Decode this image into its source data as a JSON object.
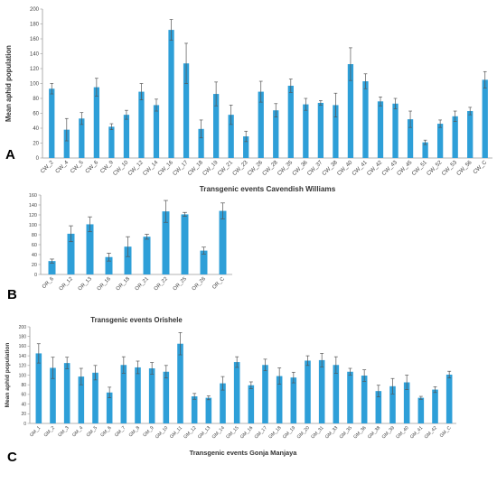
{
  "colors": {
    "bar": "#2E9FD8",
    "error_bar": "#555555",
    "axis": "#9a9a9a",
    "text": "#444444"
  },
  "chart_data": [
    {
      "type": "bar",
      "panel_label": "A",
      "title": "",
      "xlabel": "Transgenic events Cavendish Williams",
      "ylabel": "Mean aphid population",
      "ylim": [
        0,
        200
      ],
      "yticks": [
        0,
        20,
        40,
        60,
        80,
        100,
        120,
        140,
        160,
        180,
        200
      ],
      "grid": false,
      "categories": [
        "CW_2",
        "CW_4",
        "CW_5",
        "CW_6",
        "CW_9",
        "CW_10",
        "CW_12",
        "CW_14",
        "CW_16",
        "CW_17",
        "CW_18",
        "CW_19",
        "CW_21",
        "CW_23",
        "CW_26",
        "CW_28",
        "CW_35",
        "CW_36",
        "CW_37",
        "CW_38",
        "CW_40",
        "CW_41",
        "CW_42",
        "CW_43",
        "CW_45",
        "CW_51",
        "CW_52",
        "CW_53",
        "CW_56",
        "CW_C"
      ],
      "values": [
        93,
        38,
        53,
        95,
        42,
        58,
        89,
        71,
        172,
        127,
        39,
        86,
        58,
        29,
        89,
        64,
        97,
        72,
        74,
        71,
        126,
        103,
        76,
        73,
        52,
        21,
        46,
        56,
        63,
        105
      ],
      "errors": [
        7,
        15,
        8,
        12,
        4,
        6,
        11,
        8,
        14,
        27,
        12,
        16,
        13,
        7,
        14,
        9,
        9,
        8,
        3,
        16,
        22,
        10,
        6,
        7,
        11,
        3,
        5,
        7,
        5,
        11
      ]
    },
    {
      "type": "bar",
      "panel_label": "B",
      "title": "",
      "xlabel": "Transgenic events Orishele",
      "ylabel": "",
      "ylim": [
        0,
        160
      ],
      "yticks": [
        0,
        20,
        40,
        60,
        80,
        100,
        120,
        140,
        160
      ],
      "grid": false,
      "categories": [
        "OR_6",
        "OR_12",
        "OR_13",
        "OR_16",
        "OR_18",
        "OR_21",
        "OR_22",
        "OR_25",
        "OR_26",
        "OR_C"
      ],
      "values": [
        27,
        82,
        101,
        35,
        56,
        76,
        127,
        121,
        48,
        128
      ],
      "errors": [
        4,
        16,
        15,
        8,
        20,
        5,
        22,
        4,
        7,
        16
      ]
    },
    {
      "type": "bar",
      "panel_label": "C",
      "title": "",
      "xlabel": "Transgenic events Gonja Manjaya",
      "ylabel": "Mean aphid population",
      "ylim": [
        0,
        200
      ],
      "yticks": [
        0,
        20,
        40,
        60,
        80,
        100,
        120,
        140,
        160,
        180,
        200
      ],
      "grid": false,
      "categories": [
        "GM_1",
        "GM_2",
        "GM_3",
        "GM_4",
        "GM_5",
        "GM_6",
        "GM_7",
        "GM_8",
        "GM_9",
        "GM_10",
        "GM_11",
        "GM_12",
        "GM_13",
        "GM_14",
        "GM_15",
        "GM_16",
        "GM_17",
        "GM_18",
        "GM_19",
        "GM_20",
        "GM_31",
        "GM_33",
        "GM_35",
        "GM_36",
        "GM_38",
        "GM_39",
        "GM_40",
        "GM_41",
        "GM_42",
        "GM_C"
      ],
      "values": [
        145,
        115,
        125,
        97,
        105,
        64,
        121,
        116,
        114,
        107,
        165,
        56,
        53,
        83,
        127,
        79,
        121,
        98,
        95,
        130,
        131,
        121,
        107,
        99,
        67,
        77,
        85,
        53,
        70,
        101
      ],
      "errors": [
        20,
        22,
        12,
        17,
        15,
        11,
        17,
        13,
        12,
        13,
        23,
        6,
        4,
        14,
        11,
        7,
        12,
        17,
        11,
        10,
        14,
        17,
        7,
        12,
        12,
        16,
        15,
        3,
        6,
        7
      ]
    }
  ]
}
